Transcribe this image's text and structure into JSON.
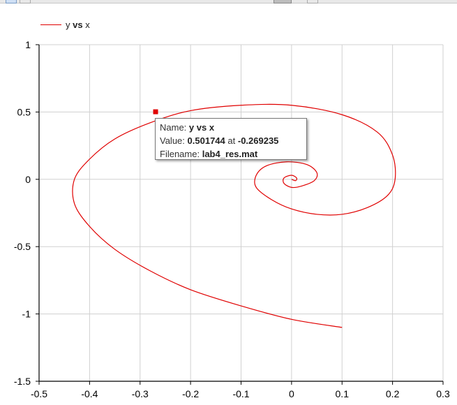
{
  "legend": {
    "label_prefix": "y",
    "label_bold": "vs",
    "label_suffix": "x"
  },
  "tooltip": {
    "name_label": "Name:",
    "name_value": "y vs x",
    "value_label": "Value:",
    "value_y": "0.501744",
    "value_at": "at",
    "value_x": "-0.269235",
    "filename_label": "Filename:",
    "filename_value": "lab4_res.mat"
  },
  "colors": {
    "series": "#e00000",
    "grid": "#d0d0d0",
    "axis": "#000000"
  },
  "chart_data": {
    "type": "line",
    "title": "",
    "xlabel": "",
    "ylabel": "",
    "xlim": [
      -0.5,
      0.3
    ],
    "ylim": [
      -1.5,
      1
    ],
    "grid": true,
    "legend_position": "top-left",
    "x_ticks": [
      "-0.5",
      "-0.4",
      "-0.3",
      "-0.2",
      "-0.1",
      "0",
      "0.1",
      "0.2",
      "0.3"
    ],
    "y_ticks": [
      "1",
      "0.5",
      "0",
      "-0.5",
      "-1",
      "-1.5"
    ],
    "series": [
      {
        "name": "y vs x",
        "color": "#e00000",
        "x": [
          0.1,
          0.0,
          -0.1,
          -0.2,
          -0.28,
          -0.35,
          -0.4,
          -0.43,
          -0.43,
          -0.4,
          -0.35,
          -0.28,
          -0.2,
          -0.1,
          0.0,
          0.1,
          0.17,
          0.2,
          0.205,
          0.19,
          0.15,
          0.1,
          0.05,
          0.0,
          -0.04,
          -0.07,
          -0.07,
          -0.05,
          -0.01,
          0.03,
          0.05,
          0.045,
          0.02,
          0.0,
          -0.015,
          -0.015,
          0.0,
          0.01,
          0.008,
          0.0
        ],
        "y": [
          -1.1,
          -1.04,
          -0.94,
          -0.82,
          -0.68,
          -0.52,
          -0.35,
          -0.18,
          0.0,
          0.15,
          0.3,
          0.42,
          0.51,
          0.55,
          0.55,
          0.48,
          0.35,
          0.18,
          0.0,
          -0.12,
          -0.21,
          -0.26,
          -0.26,
          -0.22,
          -0.15,
          -0.06,
          0.03,
          0.1,
          0.13,
          0.11,
          0.05,
          -0.01,
          -0.05,
          -0.06,
          -0.03,
          0.01,
          0.03,
          0.01,
          -0.01,
          0.0
        ]
      }
    ],
    "highlight_point": {
      "x": -0.269235,
      "y": 0.501744
    }
  }
}
